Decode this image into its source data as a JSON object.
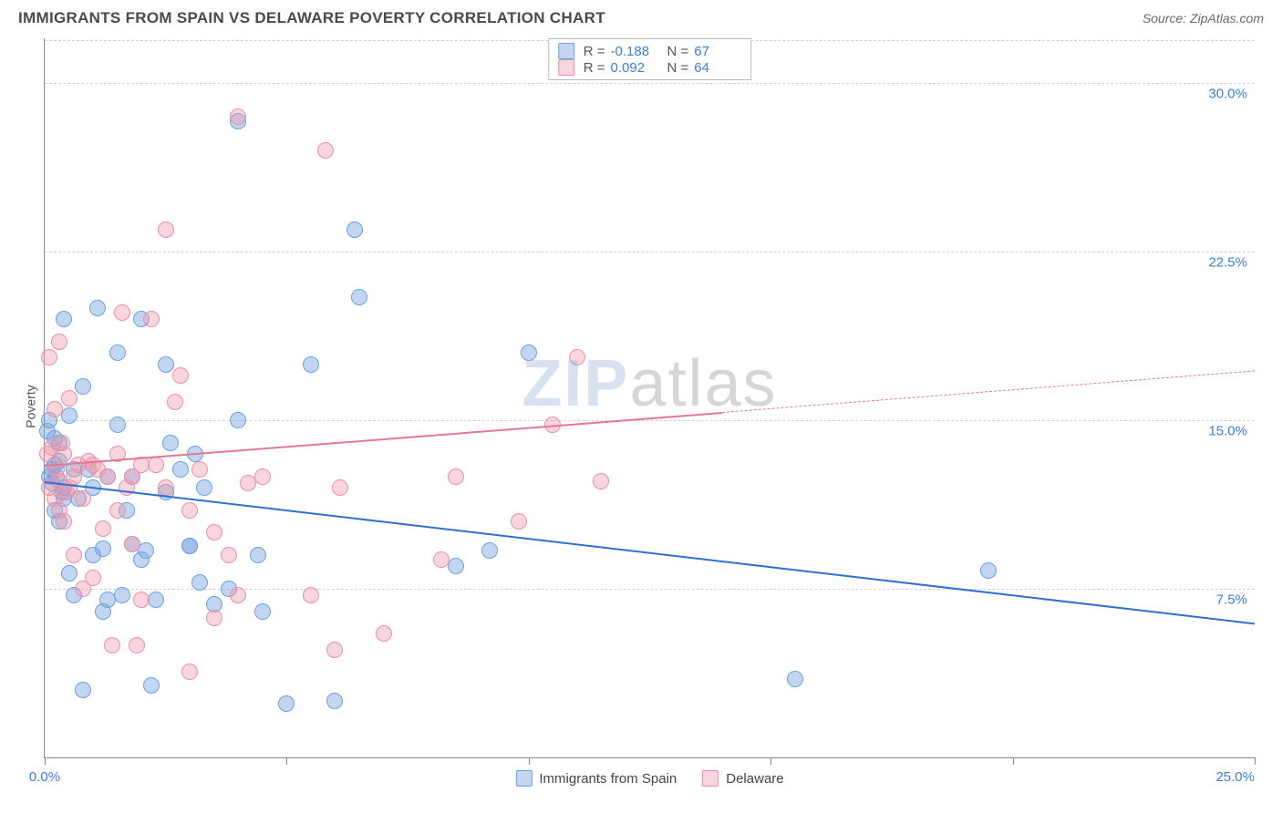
{
  "title": "IMMIGRANTS FROM SPAIN VS DELAWARE POVERTY CORRELATION CHART",
  "source": "Source: ZipAtlas.com",
  "ylabel": "Poverty",
  "watermark": {
    "zip": "ZIP",
    "atlas": "atlas"
  },
  "chart": {
    "type": "scatter",
    "xlim": [
      0,
      25
    ],
    "ylim": [
      0,
      32
    ],
    "xticks": [
      0,
      5,
      10,
      15,
      20,
      25
    ],
    "xtick_labels": [
      "0.0%",
      "",
      "",
      "",
      "",
      "25.0%"
    ],
    "yticks": [
      7.5,
      15.0,
      22.5,
      30.0
    ],
    "ytick_labels": [
      "7.5%",
      "15.0%",
      "22.5%",
      "30.0%"
    ],
    "background_color": "#ffffff",
    "grid_color": "#d0d0d0",
    "axis_color": "#888888",
    "marker_radius": 9,
    "series": [
      {
        "name": "Immigrants from Spain",
        "fill": "rgba(120,165,225,0.45)",
        "stroke": "#6a9fe0",
        "line_color": "#2f6fd0",
        "line_width": 2.5,
        "R": "-0.188",
        "N": "67",
        "trend": {
          "x1": 0,
          "y1": 12.3,
          "x2": 25,
          "y2": 6.0,
          "dash": false,
          "extend_dash_from": null
        },
        "points": [
          [
            0.05,
            14.5
          ],
          [
            0.1,
            15.0
          ],
          [
            0.1,
            12.5
          ],
          [
            0.15,
            12.8
          ],
          [
            0.15,
            12.2
          ],
          [
            0.2,
            14.2
          ],
          [
            0.2,
            11.0
          ],
          [
            0.25,
            12.5
          ],
          [
            0.3,
            13.2
          ],
          [
            0.3,
            10.5
          ],
          [
            0.35,
            11.8
          ],
          [
            0.4,
            12.0
          ],
          [
            0.4,
            19.5
          ],
          [
            0.5,
            15.2
          ],
          [
            0.5,
            8.2
          ],
          [
            0.6,
            12.8
          ],
          [
            0.6,
            7.2
          ],
          [
            0.7,
            11.5
          ],
          [
            0.8,
            16.5
          ],
          [
            0.8,
            3.0
          ],
          [
            0.9,
            12.8
          ],
          [
            1.0,
            9.0
          ],
          [
            1.0,
            12.0
          ],
          [
            1.1,
            20.0
          ],
          [
            1.2,
            9.3
          ],
          [
            1.2,
            6.5
          ],
          [
            1.3,
            7.0
          ],
          [
            1.3,
            12.5
          ],
          [
            1.5,
            18.0
          ],
          [
            1.5,
            14.8
          ],
          [
            1.6,
            7.2
          ],
          [
            1.7,
            11.0
          ],
          [
            1.8,
            9.5
          ],
          [
            1.8,
            12.5
          ],
          [
            2.0,
            19.5
          ],
          [
            2.0,
            8.8
          ],
          [
            2.1,
            9.2
          ],
          [
            2.2,
            3.2
          ],
          [
            2.3,
            7.0
          ],
          [
            2.5,
            17.5
          ],
          [
            2.5,
            11.8
          ],
          [
            2.6,
            14.0
          ],
          [
            2.8,
            12.8
          ],
          [
            3.0,
            9.4
          ],
          [
            3.0,
            9.4
          ],
          [
            3.1,
            13.5
          ],
          [
            3.2,
            7.8
          ],
          [
            3.3,
            12.0
          ],
          [
            3.5,
            6.8
          ],
          [
            3.8,
            7.5
          ],
          [
            4.0,
            15.0
          ],
          [
            4.0,
            28.3
          ],
          [
            4.4,
            9.0
          ],
          [
            4.5,
            6.5
          ],
          [
            5.0,
            2.4
          ],
          [
            5.5,
            17.5
          ],
          [
            6.0,
            2.5
          ],
          [
            6.4,
            23.5
          ],
          [
            6.5,
            20.5
          ],
          [
            8.5,
            8.5
          ],
          [
            9.2,
            9.2
          ],
          [
            10.0,
            18.0
          ],
          [
            15.5,
            3.5
          ],
          [
            19.5,
            8.3
          ],
          [
            0.4,
            11.5
          ],
          [
            0.3,
            14.0
          ],
          [
            0.2,
            13.0
          ]
        ]
      },
      {
        "name": "Delaware",
        "fill": "rgba(240,150,170,0.40)",
        "stroke": "#e890a5",
        "line_color": "#e37893",
        "line_width": 2,
        "R": "0.092",
        "N": "64",
        "trend": {
          "x1": 0,
          "y1": 13.0,
          "x2": 25,
          "y2": 17.2,
          "dash": false,
          "extend_dash_from": 14.0
        },
        "points": [
          [
            0.05,
            13.5
          ],
          [
            0.1,
            17.8
          ],
          [
            0.1,
            12.0
          ],
          [
            0.15,
            13.8
          ],
          [
            0.2,
            11.5
          ],
          [
            0.2,
            15.5
          ],
          [
            0.25,
            12.8
          ],
          [
            0.3,
            18.5
          ],
          [
            0.3,
            11.0
          ],
          [
            0.35,
            14.0
          ],
          [
            0.4,
            13.5
          ],
          [
            0.4,
            10.5
          ],
          [
            0.45,
            11.8
          ],
          [
            0.5,
            16.0
          ],
          [
            0.6,
            12.5
          ],
          [
            0.6,
            9.0
          ],
          [
            0.7,
            13.0
          ],
          [
            0.8,
            11.5
          ],
          [
            0.8,
            7.5
          ],
          [
            0.9,
            13.2
          ],
          [
            1.0,
            13.0
          ],
          [
            1.0,
            8.0
          ],
          [
            1.1,
            12.8
          ],
          [
            1.2,
            10.2
          ],
          [
            1.3,
            12.5
          ],
          [
            1.4,
            5.0
          ],
          [
            1.5,
            11.0
          ],
          [
            1.5,
            13.5
          ],
          [
            1.6,
            19.8
          ],
          [
            1.7,
            12.0
          ],
          [
            1.8,
            9.5
          ],
          [
            1.8,
            12.5
          ],
          [
            1.9,
            5.0
          ],
          [
            2.0,
            7.0
          ],
          [
            2.0,
            13.0
          ],
          [
            2.2,
            19.5
          ],
          [
            2.3,
            13.0
          ],
          [
            2.5,
            23.5
          ],
          [
            2.5,
            12.0
          ],
          [
            2.7,
            15.8
          ],
          [
            2.8,
            17.0
          ],
          [
            3.0,
            3.8
          ],
          [
            3.0,
            11.0
          ],
          [
            3.2,
            12.8
          ],
          [
            3.5,
            10.0
          ],
          [
            3.5,
            6.2
          ],
          [
            3.8,
            9.0
          ],
          [
            4.0,
            7.2
          ],
          [
            4.0,
            28.5
          ],
          [
            4.2,
            12.2
          ],
          [
            4.5,
            12.5
          ],
          [
            5.5,
            7.2
          ],
          [
            5.8,
            27.0
          ],
          [
            6.0,
            4.8
          ],
          [
            6.1,
            12.0
          ],
          [
            7.0,
            5.5
          ],
          [
            8.2,
            8.8
          ],
          [
            8.5,
            12.5
          ],
          [
            9.8,
            10.5
          ],
          [
            10.5,
            14.8
          ],
          [
            11.0,
            17.8
          ],
          [
            11.5,
            12.3
          ],
          [
            0.5,
            12.0
          ],
          [
            0.3,
            12.3
          ]
        ]
      }
    ]
  },
  "legend_bottom": [
    {
      "label": "Immigrants from Spain",
      "fill": "rgba(120,165,225,0.45)",
      "stroke": "#6a9fe0"
    },
    {
      "label": "Delaware",
      "fill": "rgba(240,150,170,0.40)",
      "stroke": "#e890a5"
    }
  ]
}
